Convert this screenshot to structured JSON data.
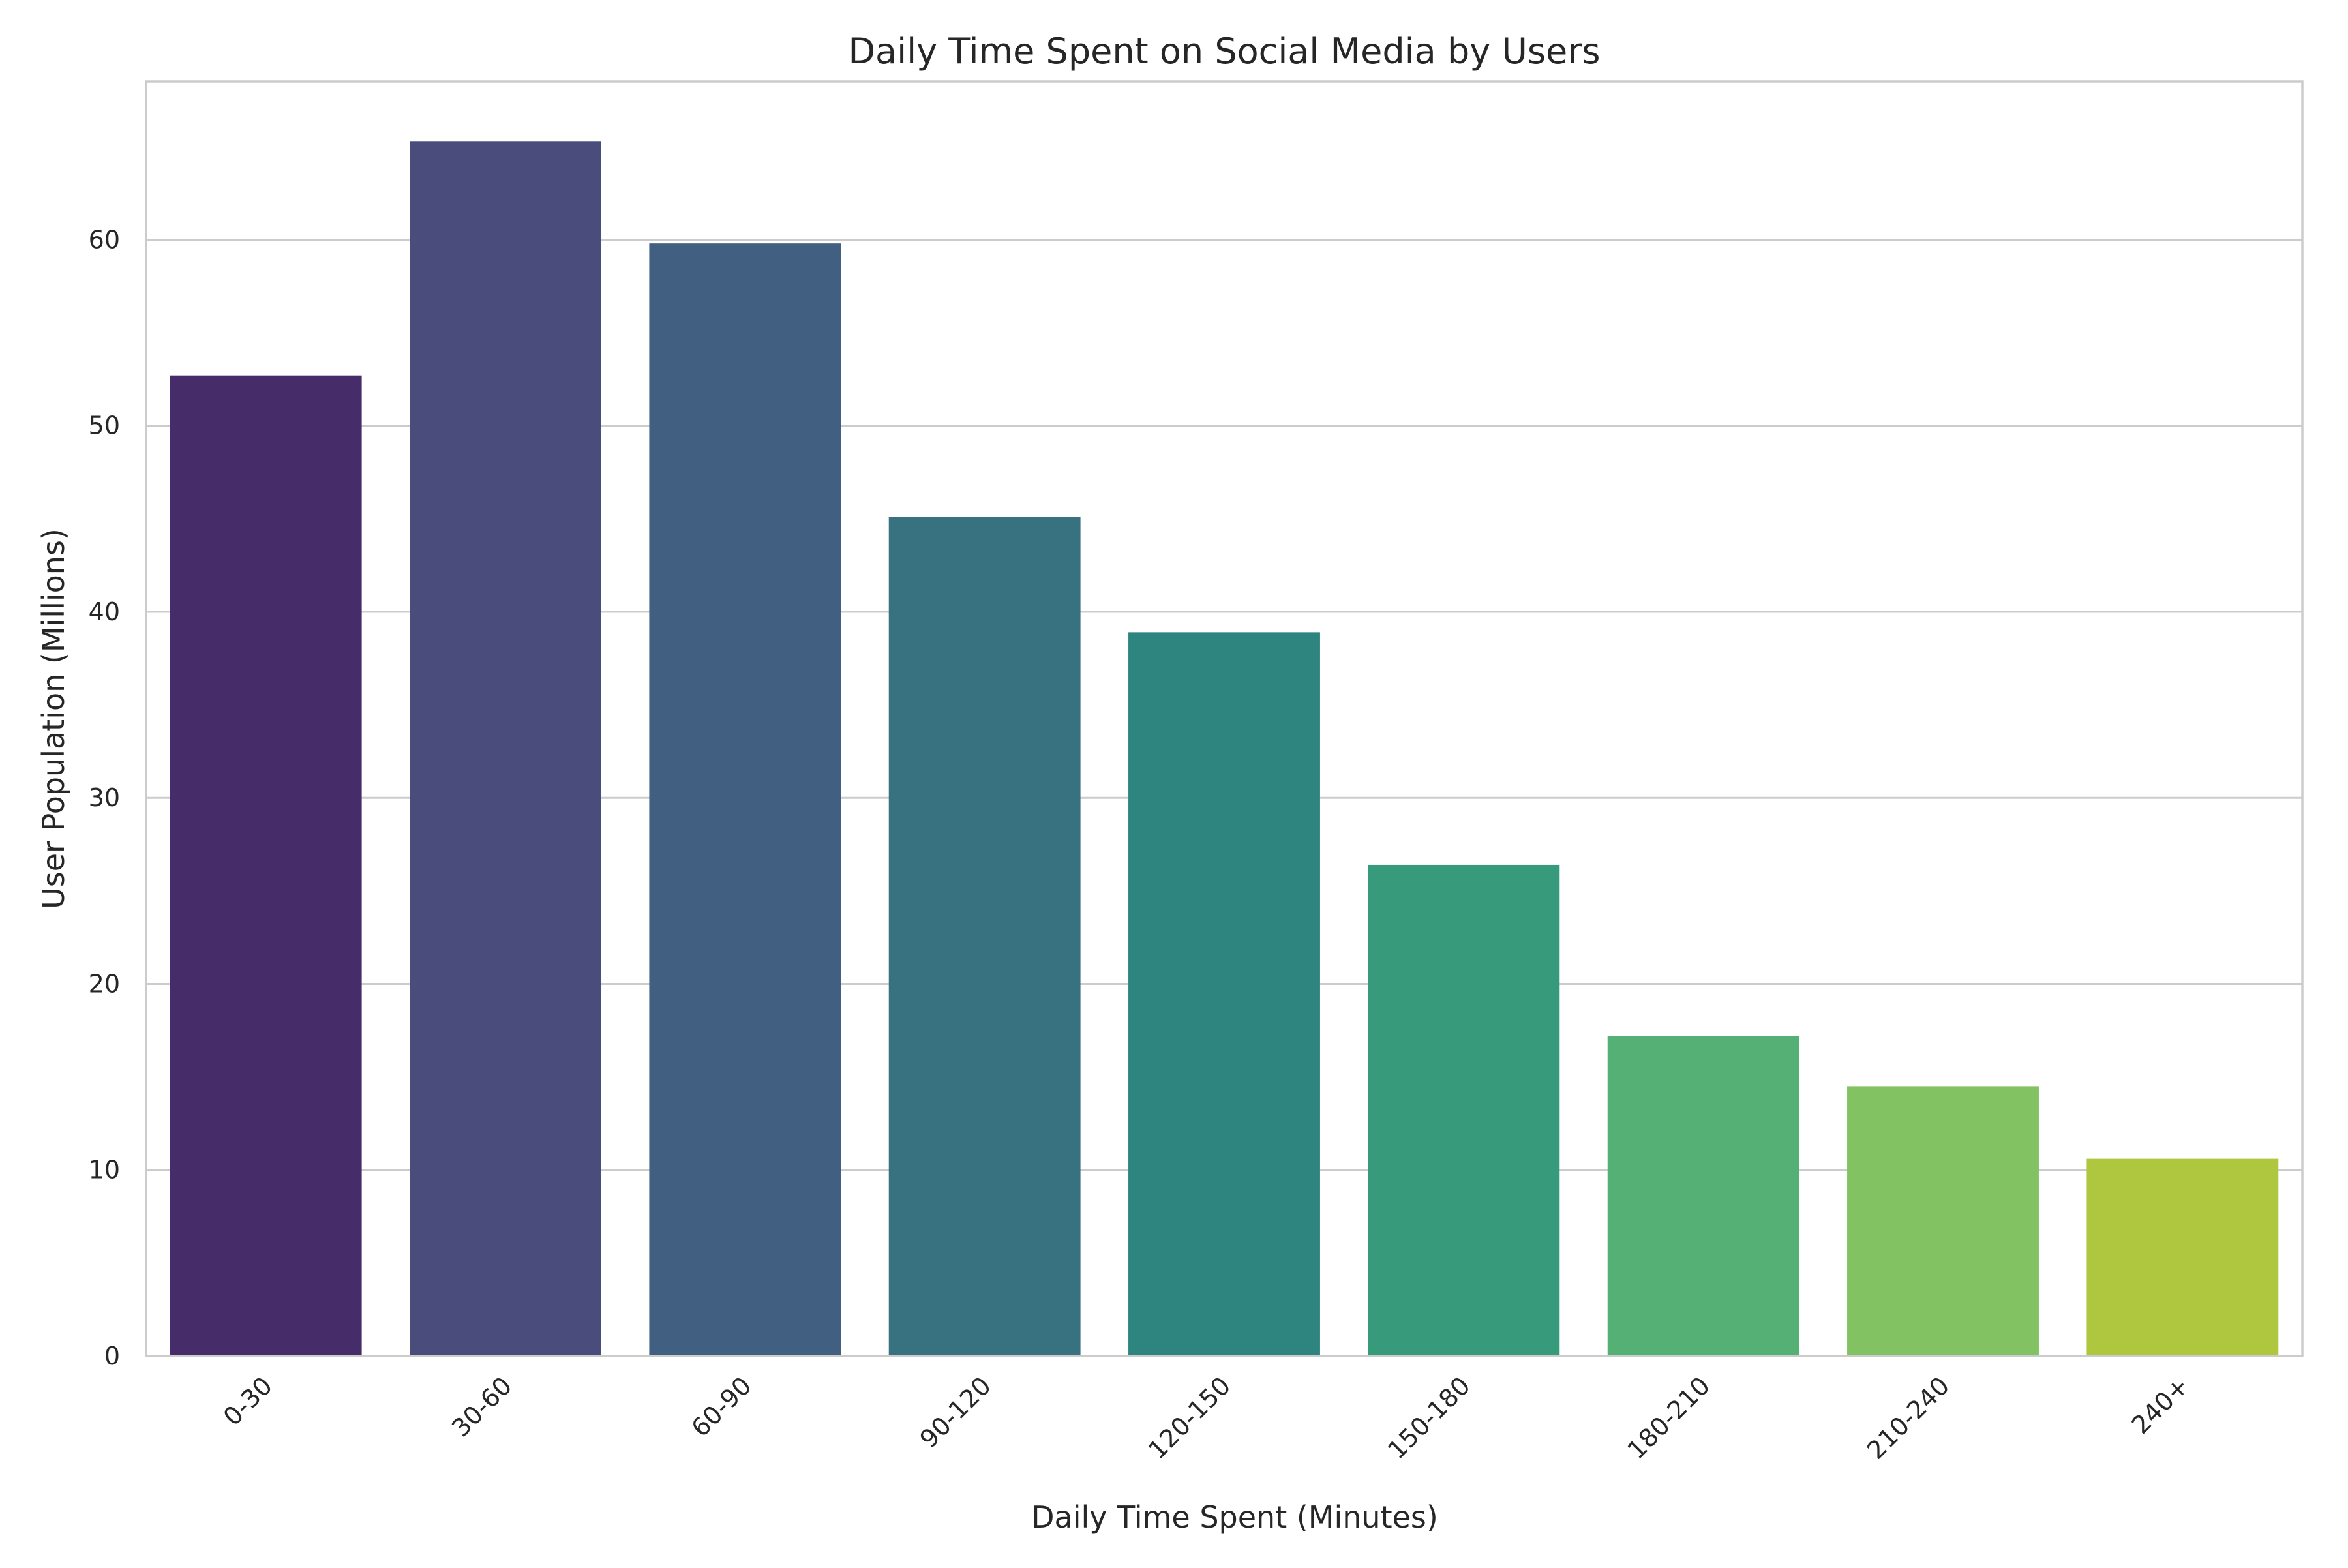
{
  "chart_data": {
    "type": "bar",
    "title": "Daily Time Spent on Social Media by Users",
    "xlabel": "Daily Time Spent (Minutes)",
    "ylabel": "User Population (Millions)",
    "categories": [
      "0-30",
      "30-60",
      "60-90",
      "90-120",
      "120-150",
      "150-180",
      "180-210",
      "210-240",
      "240+"
    ],
    "values": [
      52.7,
      65.3,
      59.8,
      45.1,
      38.9,
      26.4,
      17.2,
      14.5,
      10.6
    ],
    "colors": [
      "#472c6a",
      "#4a4c7c",
      "#415f81",
      "#387180",
      "#2e857f",
      "#369a7b",
      "#55b075",
      "#82c262",
      "#aec73f"
    ],
    "ylim": [
      0,
      68.5
    ],
    "yticks": [
      0,
      10,
      20,
      30,
      40,
      50,
      60
    ],
    "grid": "horizontal",
    "legend": "none"
  }
}
